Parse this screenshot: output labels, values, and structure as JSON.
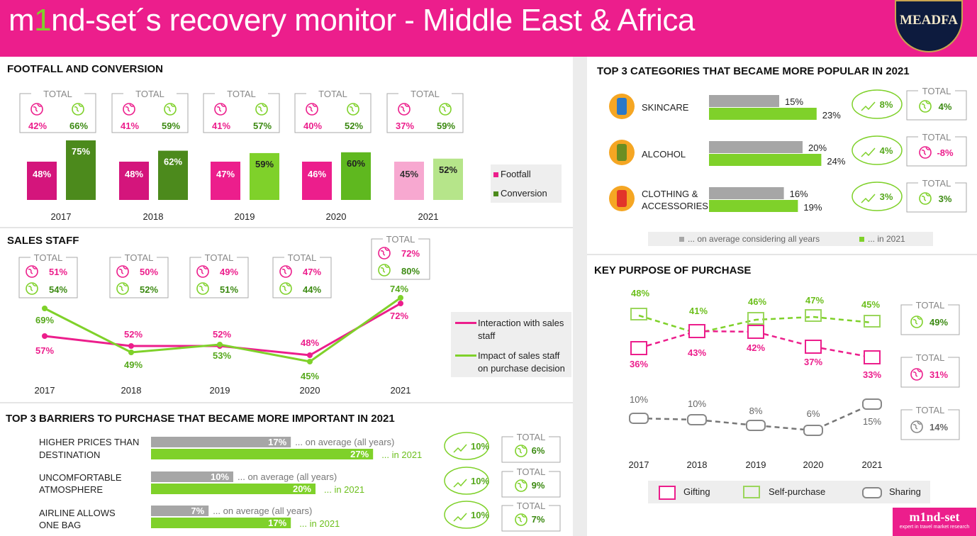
{
  "header": {
    "title_pre": "m",
    "title_one": "1",
    "title_post": "nd-set´s recovery monitor - Middle East & Africa",
    "logo": "MEADFA"
  },
  "colors": {
    "pink": "#ec1e8c",
    "green": "#7fd12a",
    "dark_green": "#4c8a1c",
    "gray": "#a6a6a6"
  },
  "footfall": {
    "title": "FOOTFALL AND CONVERSION",
    "total_label": "TOTAL",
    "legend": [
      "Footfall",
      "Conversion"
    ]
  },
  "sales": {
    "title": "SALES STAFF",
    "total_label": "TOTAL",
    "legend": [
      "Interaction with sales staff",
      "Impact of sales staff on purchase decision"
    ]
  },
  "barriers": {
    "title": "TOP 3 BARRIERS TO PURCHASE THAT BECAME MORE IMPORTANT IN 2021",
    "avg_label": "... on average (all years)",
    "y2021_label": "... in 2021",
    "total_label": "TOTAL",
    "items": [
      {
        "label1": "HIGHER PRICES THAN",
        "label2": "DESTINATION"
      },
      {
        "label1": "UNCOMFORTABLE",
        "label2": "ATMOSPHERE"
      },
      {
        "label1": "AIRLINE ALLOWS",
        "label2": "ONE BAG"
      }
    ]
  },
  "categories": {
    "title": "TOP 3 CATEGORIES THAT BECAME MORE POPULAR IN 2021",
    "total_label": "TOTAL",
    "legend_avg": "... on average considering all years",
    "legend_2021": "... in 2021",
    "items": [
      {
        "label1": "SKINCARE",
        "label2": ""
      },
      {
        "label1": "ALCOHOL",
        "label2": ""
      },
      {
        "label1": "CLOTHING &",
        "label2": "ACCESSORIES"
      }
    ]
  },
  "purpose": {
    "title": "KEY PURPOSE OF PURCHASE",
    "total_label": "TOTAL",
    "legend": [
      "Gifting",
      "Self-purchase",
      "Sharing"
    ]
  },
  "footer": {
    "brand": "m1nd-set",
    "tagline": "expert in travel market research"
  },
  "chart_data": [
    {
      "type": "bar",
      "name": "footfall-conversion",
      "categories": [
        "2017",
        "2018",
        "2019",
        "2020",
        "2021"
      ],
      "series": [
        {
          "name": "Footfall",
          "values": [
            48,
            48,
            47,
            46,
            45
          ]
        },
        {
          "name": "Conversion",
          "values": [
            75,
            62,
            59,
            60,
            52
          ]
        }
      ],
      "totals": {
        "footfall": [
          42,
          41,
          41,
          40,
          37
        ],
        "conversion": [
          66,
          59,
          57,
          52,
          59
        ]
      },
      "value_labels": [
        "48%",
        "48%",
        "47%",
        "46%",
        "45%",
        "75%",
        "62%",
        "59%",
        "60%",
        "52%"
      ]
    },
    {
      "type": "line",
      "name": "sales-staff",
      "categories": [
        "2017",
        "2018",
        "2019",
        "2020",
        "2021"
      ],
      "series": [
        {
          "name": "Interaction with sales staff",
          "values": [
            57,
            52,
            52,
            48,
            72
          ]
        },
        {
          "name": "Impact of sales staff on purchase decision",
          "values": [
            69,
            49,
            53,
            45,
            74
          ]
        }
      ],
      "totals": {
        "interaction": [
          51,
          50,
          49,
          47,
          72
        ],
        "impact": [
          54,
          52,
          51,
          44,
          80
        ]
      }
    },
    {
      "type": "bar",
      "name": "barriers",
      "categories": [
        "HIGHER PRICES THAN DESTINATION",
        "UNCOMFORTABLE ATMOSPHERE",
        "AIRLINE ALLOWS ONE BAG"
      ],
      "series": [
        {
          "name": "... on average (all years)",
          "values": [
            17,
            10,
            7
          ]
        },
        {
          "name": "... in 2021",
          "values": [
            27,
            20,
            17
          ]
        }
      ],
      "change": [
        "10%",
        "10%",
        "10%"
      ],
      "totals": [
        "6%",
        "9%",
        "7%"
      ]
    },
    {
      "type": "bar",
      "name": "categories",
      "categories": [
        "SKINCARE",
        "ALCOHOL",
        "CLOTHING & ACCESSORIES"
      ],
      "series": [
        {
          "name": "... on average considering all years",
          "values": [
            15,
            20,
            16
          ]
        },
        {
          "name": "... in 2021",
          "values": [
            23,
            24,
            19
          ]
        }
      ],
      "change": [
        "8%",
        "4%",
        "3%"
      ],
      "totals": [
        "4%",
        "-8%",
        "3%"
      ]
    },
    {
      "type": "line",
      "name": "purpose",
      "categories": [
        "2017",
        "2018",
        "2019",
        "2020",
        "2021"
      ],
      "series": [
        {
          "name": "Gifting",
          "values": [
            36,
            43,
            42,
            37,
            33
          ]
        },
        {
          "name": "Self-purchase",
          "values": [
            48,
            41,
            46,
            47,
            45
          ]
        },
        {
          "name": "Sharing",
          "values": [
            10,
            10,
            8,
            6,
            15
          ]
        }
      ],
      "totals": {
        "gifting": "31%",
        "self_purchase": "49%",
        "sharing": "14%"
      }
    }
  ]
}
